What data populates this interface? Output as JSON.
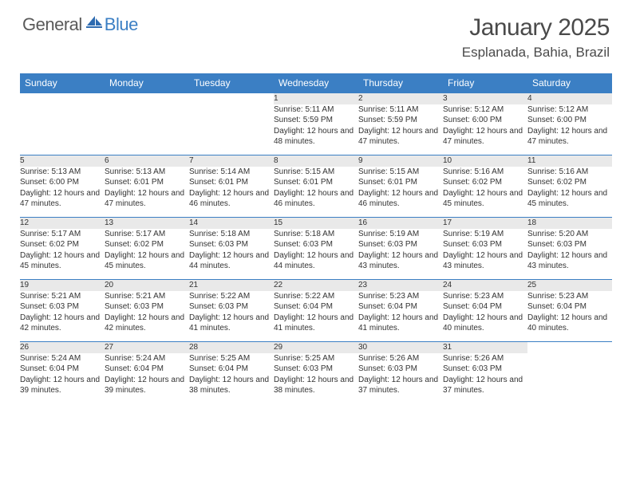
{
  "brand": {
    "text1": "General",
    "text2": "Blue"
  },
  "title": "January 2025",
  "location": "Esplanada, Bahia, Brazil",
  "colors": {
    "header_bg": "#3b7fc4",
    "header_text": "#ffffff",
    "daynum_bg": "#e9e9e9",
    "row_border": "#3b7fc4",
    "body_text": "#333333",
    "title_text": "#4a4a4a"
  },
  "weekdays": [
    "Sunday",
    "Monday",
    "Tuesday",
    "Wednesday",
    "Thursday",
    "Friday",
    "Saturday"
  ],
  "startOffset": 3,
  "days": [
    {
      "n": 1,
      "sunrise": "5:11 AM",
      "sunset": "5:59 PM",
      "daylight": "12 hours and 48 minutes."
    },
    {
      "n": 2,
      "sunrise": "5:11 AM",
      "sunset": "5:59 PM",
      "daylight": "12 hours and 47 minutes."
    },
    {
      "n": 3,
      "sunrise": "5:12 AM",
      "sunset": "6:00 PM",
      "daylight": "12 hours and 47 minutes."
    },
    {
      "n": 4,
      "sunrise": "5:12 AM",
      "sunset": "6:00 PM",
      "daylight": "12 hours and 47 minutes."
    },
    {
      "n": 5,
      "sunrise": "5:13 AM",
      "sunset": "6:00 PM",
      "daylight": "12 hours and 47 minutes."
    },
    {
      "n": 6,
      "sunrise": "5:13 AM",
      "sunset": "6:01 PM",
      "daylight": "12 hours and 47 minutes."
    },
    {
      "n": 7,
      "sunrise": "5:14 AM",
      "sunset": "6:01 PM",
      "daylight": "12 hours and 46 minutes."
    },
    {
      "n": 8,
      "sunrise": "5:15 AM",
      "sunset": "6:01 PM",
      "daylight": "12 hours and 46 minutes."
    },
    {
      "n": 9,
      "sunrise": "5:15 AM",
      "sunset": "6:01 PM",
      "daylight": "12 hours and 46 minutes."
    },
    {
      "n": 10,
      "sunrise": "5:16 AM",
      "sunset": "6:02 PM",
      "daylight": "12 hours and 45 minutes."
    },
    {
      "n": 11,
      "sunrise": "5:16 AM",
      "sunset": "6:02 PM",
      "daylight": "12 hours and 45 minutes."
    },
    {
      "n": 12,
      "sunrise": "5:17 AM",
      "sunset": "6:02 PM",
      "daylight": "12 hours and 45 minutes."
    },
    {
      "n": 13,
      "sunrise": "5:17 AM",
      "sunset": "6:02 PM",
      "daylight": "12 hours and 45 minutes."
    },
    {
      "n": 14,
      "sunrise": "5:18 AM",
      "sunset": "6:03 PM",
      "daylight": "12 hours and 44 minutes."
    },
    {
      "n": 15,
      "sunrise": "5:18 AM",
      "sunset": "6:03 PM",
      "daylight": "12 hours and 44 minutes."
    },
    {
      "n": 16,
      "sunrise": "5:19 AM",
      "sunset": "6:03 PM",
      "daylight": "12 hours and 43 minutes."
    },
    {
      "n": 17,
      "sunrise": "5:19 AM",
      "sunset": "6:03 PM",
      "daylight": "12 hours and 43 minutes."
    },
    {
      "n": 18,
      "sunrise": "5:20 AM",
      "sunset": "6:03 PM",
      "daylight": "12 hours and 43 minutes."
    },
    {
      "n": 19,
      "sunrise": "5:21 AM",
      "sunset": "6:03 PM",
      "daylight": "12 hours and 42 minutes."
    },
    {
      "n": 20,
      "sunrise": "5:21 AM",
      "sunset": "6:03 PM",
      "daylight": "12 hours and 42 minutes."
    },
    {
      "n": 21,
      "sunrise": "5:22 AM",
      "sunset": "6:03 PM",
      "daylight": "12 hours and 41 minutes."
    },
    {
      "n": 22,
      "sunrise": "5:22 AM",
      "sunset": "6:04 PM",
      "daylight": "12 hours and 41 minutes."
    },
    {
      "n": 23,
      "sunrise": "5:23 AM",
      "sunset": "6:04 PM",
      "daylight": "12 hours and 41 minutes."
    },
    {
      "n": 24,
      "sunrise": "5:23 AM",
      "sunset": "6:04 PM",
      "daylight": "12 hours and 40 minutes."
    },
    {
      "n": 25,
      "sunrise": "5:23 AM",
      "sunset": "6:04 PM",
      "daylight": "12 hours and 40 minutes."
    },
    {
      "n": 26,
      "sunrise": "5:24 AM",
      "sunset": "6:04 PM",
      "daylight": "12 hours and 39 minutes."
    },
    {
      "n": 27,
      "sunrise": "5:24 AM",
      "sunset": "6:04 PM",
      "daylight": "12 hours and 39 minutes."
    },
    {
      "n": 28,
      "sunrise": "5:25 AM",
      "sunset": "6:04 PM",
      "daylight": "12 hours and 38 minutes."
    },
    {
      "n": 29,
      "sunrise": "5:25 AM",
      "sunset": "6:03 PM",
      "daylight": "12 hours and 38 minutes."
    },
    {
      "n": 30,
      "sunrise": "5:26 AM",
      "sunset": "6:03 PM",
      "daylight": "12 hours and 37 minutes."
    },
    {
      "n": 31,
      "sunrise": "5:26 AM",
      "sunset": "6:03 PM",
      "daylight": "12 hours and 37 minutes."
    }
  ],
  "labels": {
    "sunrise": "Sunrise:",
    "sunset": "Sunset:",
    "daylight": "Daylight:"
  }
}
